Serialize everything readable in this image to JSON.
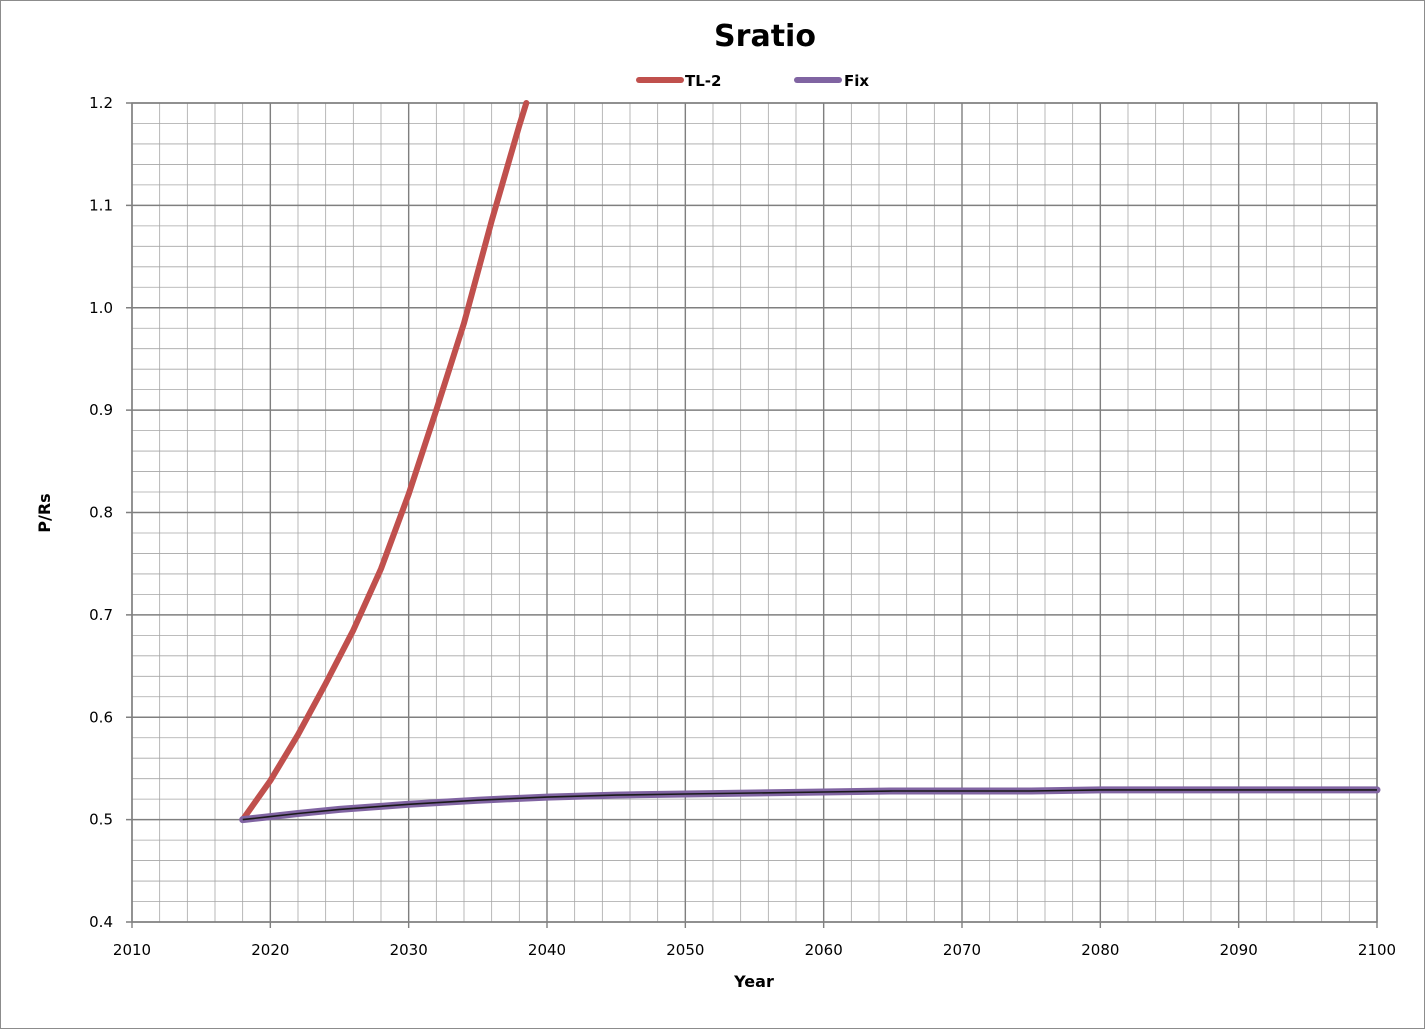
{
  "chart_data": {
    "type": "line",
    "title": "Sratio",
    "xlabel": "Year",
    "ylabel": "P/Rs",
    "xlim": [
      2010,
      2100
    ],
    "ylim": [
      0.4,
      1.2
    ],
    "x_ticks": [
      "2010",
      "2020",
      "2030",
      "2040",
      "2050",
      "2060",
      "2070",
      "2080",
      "2090",
      "2100"
    ],
    "y_ticks": [
      "0.4",
      "0.5",
      "0.6",
      "0.7",
      "0.8",
      "0.9",
      "1.0",
      "1.1",
      "1.2"
    ],
    "x_minor_step": 2,
    "y_minor_step": 0.02,
    "grid": true,
    "legend_position": "top",
    "series": [
      {
        "name": "TL-2",
        "color": "#c0504d",
        "x": [
          2018,
          2020,
          2022,
          2024,
          2026,
          2028,
          2030,
          2032,
          2034,
          2036,
          2038,
          2038.5
        ],
        "y": [
          0.5,
          0.538,
          0.583,
          0.633,
          0.685,
          0.745,
          0.818,
          0.9,
          0.985,
          1.085,
          1.178,
          1.2
        ]
      },
      {
        "name": "Fix",
        "color": "#8064a2",
        "x": [
          2018,
          2020,
          2022,
          2025,
          2030,
          2035,
          2040,
          2045,
          2050,
          2055,
          2060,
          2065,
          2070,
          2075,
          2080,
          2090,
          2100
        ],
        "y": [
          0.5,
          0.503,
          0.506,
          0.51,
          0.515,
          0.519,
          0.522,
          0.524,
          0.525,
          0.526,
          0.527,
          0.528,
          0.528,
          0.528,
          0.529,
          0.529,
          0.529
        ]
      }
    ]
  }
}
